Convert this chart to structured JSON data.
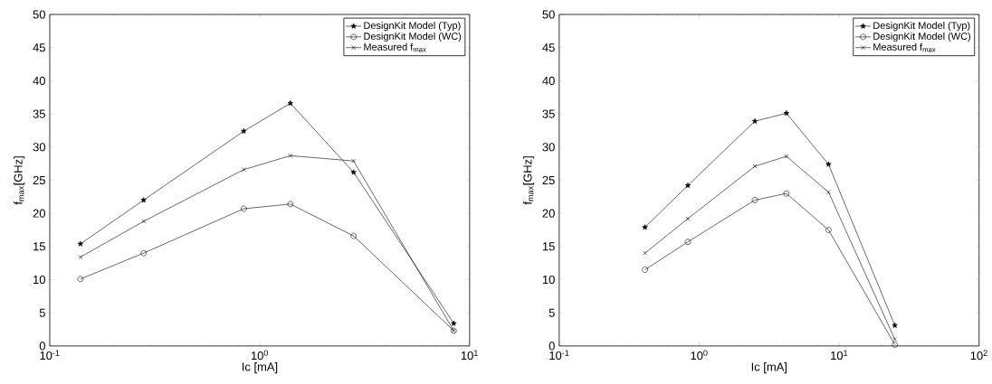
{
  "chart_data": [
    {
      "type": "line",
      "log": "x",
      "xlabel": "Ic [mA]",
      "ylabel": "f$_{max}$[GHz]",
      "legend": "top right",
      "x": [
        0.14,
        0.28,
        0.84,
        1.4,
        2.8,
        8.4
      ],
      "xlim": [
        0.1,
        10
      ],
      "xticks": [
        {
          "value": 0.1,
          "label": "10$^{-1}$"
        },
        {
          "value": 1,
          "label": "10$^{0}$"
        },
        {
          "value": 10,
          "label": "10$^{1}$"
        }
      ],
      "ylim": [
        0,
        50
      ],
      "yticks": [
        0,
        5,
        10,
        15,
        20,
        25,
        30,
        35,
        40,
        45,
        50
      ],
      "series": [
        {
          "name": "DesignKit Model (Typ)",
          "color": "#000000",
          "marker": "star",
          "values": [
            15.4,
            22.0,
            32.4,
            36.6,
            26.2,
            3.4
          ]
        },
        {
          "name": "DesignKit Model (WC)",
          "color": "#000000",
          "marker": "circle",
          "values": [
            10.1,
            14.0,
            20.7,
            21.4,
            16.6,
            2.3
          ]
        },
        {
          "name": "Measured f$_{max}$",
          "color": "#000000",
          "marker": "cross",
          "values": [
            13.4,
            18.8,
            26.6,
            28.7,
            27.9,
            2.3
          ]
        }
      ]
    },
    {
      "type": "line",
      "log": "x",
      "xlabel": "Ic [mA]",
      "ylabel": "f$_{max}$[GHz]",
      "legend": "top right",
      "x": [
        0.41,
        0.83,
        2.5,
        4.2,
        8.4,
        25
      ],
      "xlim": [
        0.1,
        100
      ],
      "xticks": [
        {
          "value": 0.1,
          "label": "10$^{-1}$"
        },
        {
          "value": 1,
          "label": "10$^{0}$"
        },
        {
          "value": 10,
          "label": "10$^{1}$"
        },
        {
          "value": 100,
          "label": "10$^{2}$"
        }
      ],
      "ylim": [
        0,
        50
      ],
      "yticks": [
        0,
        5,
        10,
        15,
        20,
        25,
        30,
        35,
        40,
        45,
        50
      ],
      "series": [
        {
          "name": "DesignKit Model (Typ)",
          "color": "#000000",
          "marker": "star",
          "values": [
            17.9,
            24.2,
            33.9,
            35.1,
            27.4,
            3.1
          ]
        },
        {
          "name": "DesignKit Model (WC)",
          "color": "#000000",
          "marker": "circle",
          "values": [
            11.5,
            15.7,
            22.0,
            23.0,
            17.5,
            0.2
          ]
        },
        {
          "name": "Measured f$_{max}$",
          "color": "#000000",
          "marker": "cross",
          "values": [
            14.0,
            19.2,
            27.1,
            28.6,
            23.2,
            1.0
          ]
        }
      ]
    }
  ]
}
